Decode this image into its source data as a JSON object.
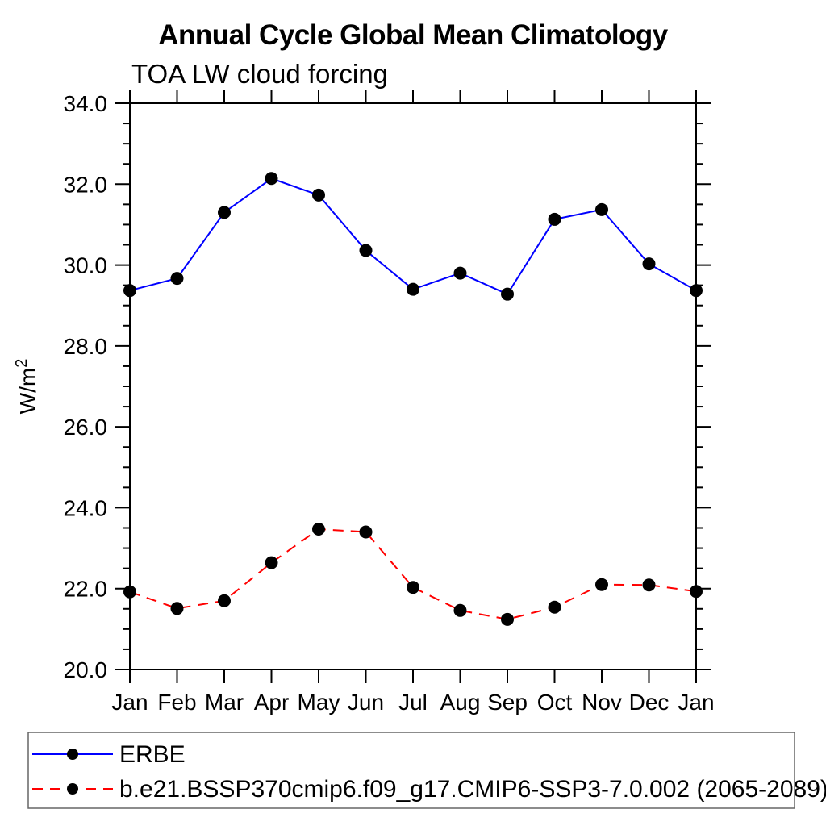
{
  "header": {
    "title": "Annual Cycle Global Mean Climatology",
    "subtitle": "TOA LW cloud forcing"
  },
  "colors": {
    "background": "#ffffff",
    "axis": "#000000",
    "marker": "#000000",
    "series_blue": "#0000ff",
    "series_red": "#ff0000",
    "legend_border": "#666666"
  },
  "chart_data": {
    "type": "line",
    "title": "Annual Cycle Global Mean Climatology",
    "subtitle": "TOA LW cloud forcing",
    "xlabel": "",
    "ylabel": "W/m²",
    "x_categories": [
      "Jan",
      "Feb",
      "Mar",
      "Apr",
      "May",
      "Jun",
      "Jul",
      "Aug",
      "Sep",
      "Oct",
      "Nov",
      "Dec",
      "Jan"
    ],
    "ylim": [
      20.0,
      34.0
    ],
    "ytick_values": [
      20.0,
      22.0,
      24.0,
      26.0,
      28.0,
      30.0,
      32.0,
      34.0
    ],
    "ytick_labels": [
      "20.0",
      "22.0",
      "24.0",
      "26.0",
      "28.0",
      "30.0",
      "32.0",
      "34.0"
    ],
    "yminor_step": 0.5,
    "grid": false,
    "legend_position": "bottom-left-box",
    "series": [
      {
        "name": "ERBE",
        "color": "#0000ff",
        "line_style": "solid",
        "line_width": 2,
        "marker": "filled-circle",
        "marker_color": "#000000",
        "values": [
          29.37,
          29.67,
          31.3,
          32.14,
          31.73,
          30.36,
          29.4,
          29.8,
          29.28,
          31.13,
          31.37,
          30.03,
          29.37
        ]
      },
      {
        "name": "b.e21.BSSP370cmip6.f09_g17.CMIP6-SSP3-7.0.002 (2065-2089)",
        "color": "#ff0000",
        "line_style": "dashed",
        "line_width": 2,
        "marker": "filled-circle",
        "marker_color": "#000000",
        "values": [
          21.92,
          21.51,
          21.7,
          22.64,
          23.47,
          23.4,
          22.03,
          21.46,
          21.24,
          21.54,
          22.1,
          22.09,
          21.93
        ]
      }
    ]
  }
}
